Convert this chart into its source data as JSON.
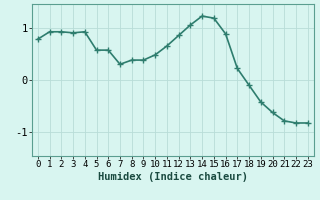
{
  "x": [
    0,
    1,
    2,
    3,
    4,
    5,
    6,
    7,
    8,
    9,
    10,
    11,
    12,
    13,
    14,
    15,
    16,
    17,
    18,
    19,
    20,
    21,
    22,
    23
  ],
  "y": [
    0.78,
    0.92,
    0.92,
    0.9,
    0.92,
    0.57,
    0.57,
    0.3,
    0.38,
    0.38,
    0.48,
    0.65,
    0.85,
    1.05,
    1.22,
    1.18,
    0.88,
    0.22,
    -0.1,
    -0.42,
    -0.62,
    -0.78,
    -0.82,
    -0.82
  ],
  "line_color": "#2e7d6e",
  "marker": "+",
  "marker_size": 4,
  "bg_color": "#d8f5f0",
  "grid_color": "#b8ddd8",
  "spine_color": "#5a9e90",
  "xlabel": "Humidex (Indice chaleur)",
  "xlabel_fontsize": 7.5,
  "yticks": [
    -1,
    0,
    1
  ],
  "xticks": [
    0,
    1,
    2,
    3,
    4,
    5,
    6,
    7,
    8,
    9,
    10,
    11,
    12,
    13,
    14,
    15,
    16,
    17,
    18,
    19,
    20,
    21,
    22,
    23
  ],
  "xlim": [
    -0.5,
    23.5
  ],
  "ylim": [
    -1.45,
    1.45
  ],
  "line_width": 1.2,
  "tick_fontsize": 6.5
}
